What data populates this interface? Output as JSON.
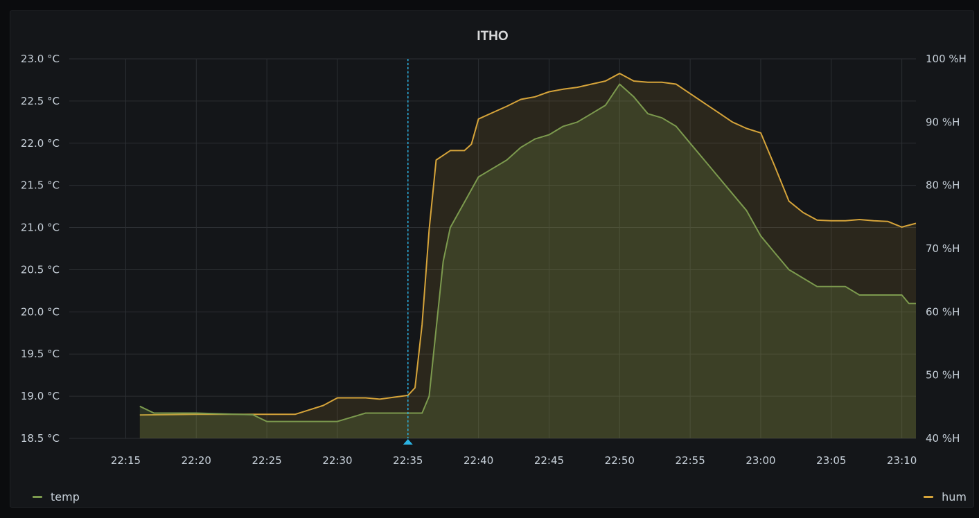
{
  "panel": {
    "title": "ITHO"
  },
  "colors": {
    "background": "#141619",
    "grid": "#2c2f33",
    "temp": "#7c9a4e",
    "hum": "#d6a43a",
    "crosshair": "#2bb3e3"
  },
  "legend": {
    "left_label": "temp",
    "right_label": "hum"
  },
  "chart_data": {
    "type": "line",
    "title": "ITHO",
    "x_ticks": [
      "22:15",
      "22:20",
      "22:25",
      "22:30",
      "22:35",
      "22:40",
      "22:45",
      "22:50",
      "22:55",
      "23:00",
      "23:05",
      "23:10"
    ],
    "x_range": [
      "22:11",
      "23:11"
    ],
    "y_left": {
      "ticks": [
        "23.0 °C",
        "22.5 °C",
        "22.0 °C",
        "21.5 °C",
        "21.0 °C",
        "20.5 °C",
        "20.0 °C",
        "19.5 °C",
        "19.0 °C",
        "18.5 °C"
      ],
      "range": [
        18.5,
        23.0
      ],
      "unit": "°C"
    },
    "y_right": {
      "ticks": [
        "100 %H",
        "90 %H",
        "80 %H",
        "70 %H",
        "60 %H",
        "50 %H",
        "40 %H"
      ],
      "range": [
        40,
        100
      ],
      "unit": "%H"
    },
    "grid": true,
    "legend_position": "bottom",
    "crosshair_time": "22:35",
    "series": [
      {
        "name": "temp",
        "axis": "left",
        "fill": true,
        "points": [
          [
            "22:16",
            18.88
          ],
          [
            "22:17",
            18.8
          ],
          [
            "22:20",
            18.8
          ],
          [
            "22:24",
            18.78
          ],
          [
            "22:25",
            18.7
          ],
          [
            "22:30",
            18.7
          ],
          [
            "22:31",
            18.75
          ],
          [
            "22:32",
            18.8
          ],
          [
            "22:35",
            18.8
          ],
          [
            "22:36",
            18.8
          ],
          [
            "22:36.5",
            19.0
          ],
          [
            "22:37",
            19.8
          ],
          [
            "22:37.5",
            20.6
          ],
          [
            "22:38",
            21.0
          ],
          [
            "22:39",
            21.3
          ],
          [
            "22:40",
            21.6
          ],
          [
            "22:41",
            21.7
          ],
          [
            "22:42",
            21.8
          ],
          [
            "22:43",
            21.95
          ],
          [
            "22:44",
            22.05
          ],
          [
            "22:45",
            22.1
          ],
          [
            "22:46",
            22.2
          ],
          [
            "22:47",
            22.25
          ],
          [
            "22:48",
            22.35
          ],
          [
            "22:49",
            22.45
          ],
          [
            "22:50",
            22.7
          ],
          [
            "22:51",
            22.55
          ],
          [
            "22:52",
            22.35
          ],
          [
            "22:53",
            22.3
          ],
          [
            "22:54",
            22.2
          ],
          [
            "22:55",
            22.0
          ],
          [
            "22:56",
            21.8
          ],
          [
            "22:57",
            21.6
          ],
          [
            "22:58",
            21.4
          ],
          [
            "22:59",
            21.2
          ],
          [
            "23:00",
            20.9
          ],
          [
            "23:01",
            20.7
          ],
          [
            "23:02",
            20.5
          ],
          [
            "23:03",
            20.4
          ],
          [
            "23:04",
            20.3
          ],
          [
            "23:05",
            20.3
          ],
          [
            "23:06",
            20.3
          ],
          [
            "23:07",
            20.2
          ],
          [
            "23:09",
            20.2
          ],
          [
            "23:10",
            20.2
          ],
          [
            "23:10.5",
            20.1
          ],
          [
            "23:11",
            20.1
          ]
        ]
      },
      {
        "name": "hum",
        "axis": "right",
        "fill": true,
        "points": [
          [
            "22:16",
            43.7
          ],
          [
            "22:20",
            43.8
          ],
          [
            "22:25",
            43.8
          ],
          [
            "22:27",
            43.8
          ],
          [
            "22:28",
            44.5
          ],
          [
            "22:29",
            45.2
          ],
          [
            "22:30",
            46.4
          ],
          [
            "22:31",
            46.4
          ],
          [
            "22:32",
            46.4
          ],
          [
            "22:33",
            46.2
          ],
          [
            "22:34",
            46.5
          ],
          [
            "22:35",
            46.8
          ],
          [
            "22:35.5",
            48.0
          ],
          [
            "22:36",
            58.0
          ],
          [
            "22:36.5",
            73.0
          ],
          [
            "22:37",
            84.0
          ],
          [
            "22:38",
            85.5
          ],
          [
            "22:39",
            85.5
          ],
          [
            "22:39.5",
            86.5
          ],
          [
            "22:40",
            90.5
          ],
          [
            "22:41",
            91.5
          ],
          [
            "22:42",
            92.5
          ],
          [
            "22:43",
            93.6
          ],
          [
            "22:44",
            94.0
          ],
          [
            "22:45",
            94.8
          ],
          [
            "22:46",
            95.2
          ],
          [
            "22:47",
            95.5
          ],
          [
            "22:48",
            96.0
          ],
          [
            "22:49",
            96.5
          ],
          [
            "22:50",
            97.7
          ],
          [
            "22:51",
            96.5
          ],
          [
            "22:52",
            96.3
          ],
          [
            "22:53",
            96.3
          ],
          [
            "22:54",
            96.0
          ],
          [
            "22:55",
            94.5
          ],
          [
            "22:56",
            93.0
          ],
          [
            "22:57",
            91.5
          ],
          [
            "22:58",
            90.0
          ],
          [
            "22:59",
            89.0
          ],
          [
            "23:00",
            88.3
          ],
          [
            "23:01",
            83.0
          ],
          [
            "23:02",
            77.5
          ],
          [
            "23:03",
            75.7
          ],
          [
            "23:04",
            74.5
          ],
          [
            "23:05",
            74.4
          ],
          [
            "23:06",
            74.4
          ],
          [
            "23:07",
            74.6
          ],
          [
            "23:08",
            74.4
          ],
          [
            "23:09",
            74.3
          ],
          [
            "23:10",
            73.4
          ],
          [
            "23:11",
            74.0
          ]
        ]
      }
    ]
  }
}
